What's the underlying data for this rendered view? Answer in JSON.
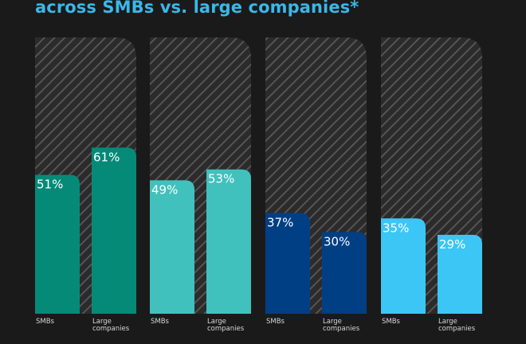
{
  "title": "across SMBs vs. large companies*",
  "chart_data": {
    "type": "bar",
    "title": "across SMBs vs. large companies*",
    "xlabel": "",
    "ylabel": "",
    "ylim": [
      0,
      100
    ],
    "grid": false,
    "groups": [
      {
        "bars": [
          {
            "category": "SMBs",
            "value": 51,
            "label": "51%",
            "color": "#058a78"
          },
          {
            "category": "Large companies",
            "value": 61,
            "label": "61%",
            "color": "#058a78"
          }
        ]
      },
      {
        "bars": [
          {
            "category": "SMBs",
            "value": 49,
            "label": "49%",
            "color": "#41c1bd"
          },
          {
            "category": "Large companies",
            "value": 53,
            "label": "53%",
            "color": "#41c1bd"
          }
        ]
      },
      {
        "bars": [
          {
            "category": "SMBs",
            "value": 37,
            "label": "37%",
            "color": "#013f85"
          },
          {
            "category": "Large companies",
            "value": 30,
            "label": "30%",
            "color": "#013f85"
          }
        ]
      },
      {
        "bars": [
          {
            "category": "SMBs",
            "value": 35,
            "label": "35%",
            "color": "#3cc6f6"
          },
          {
            "category": "Large companies",
            "value": 29,
            "label": "29%",
            "color": "#3cc6f6"
          }
        ]
      }
    ]
  }
}
